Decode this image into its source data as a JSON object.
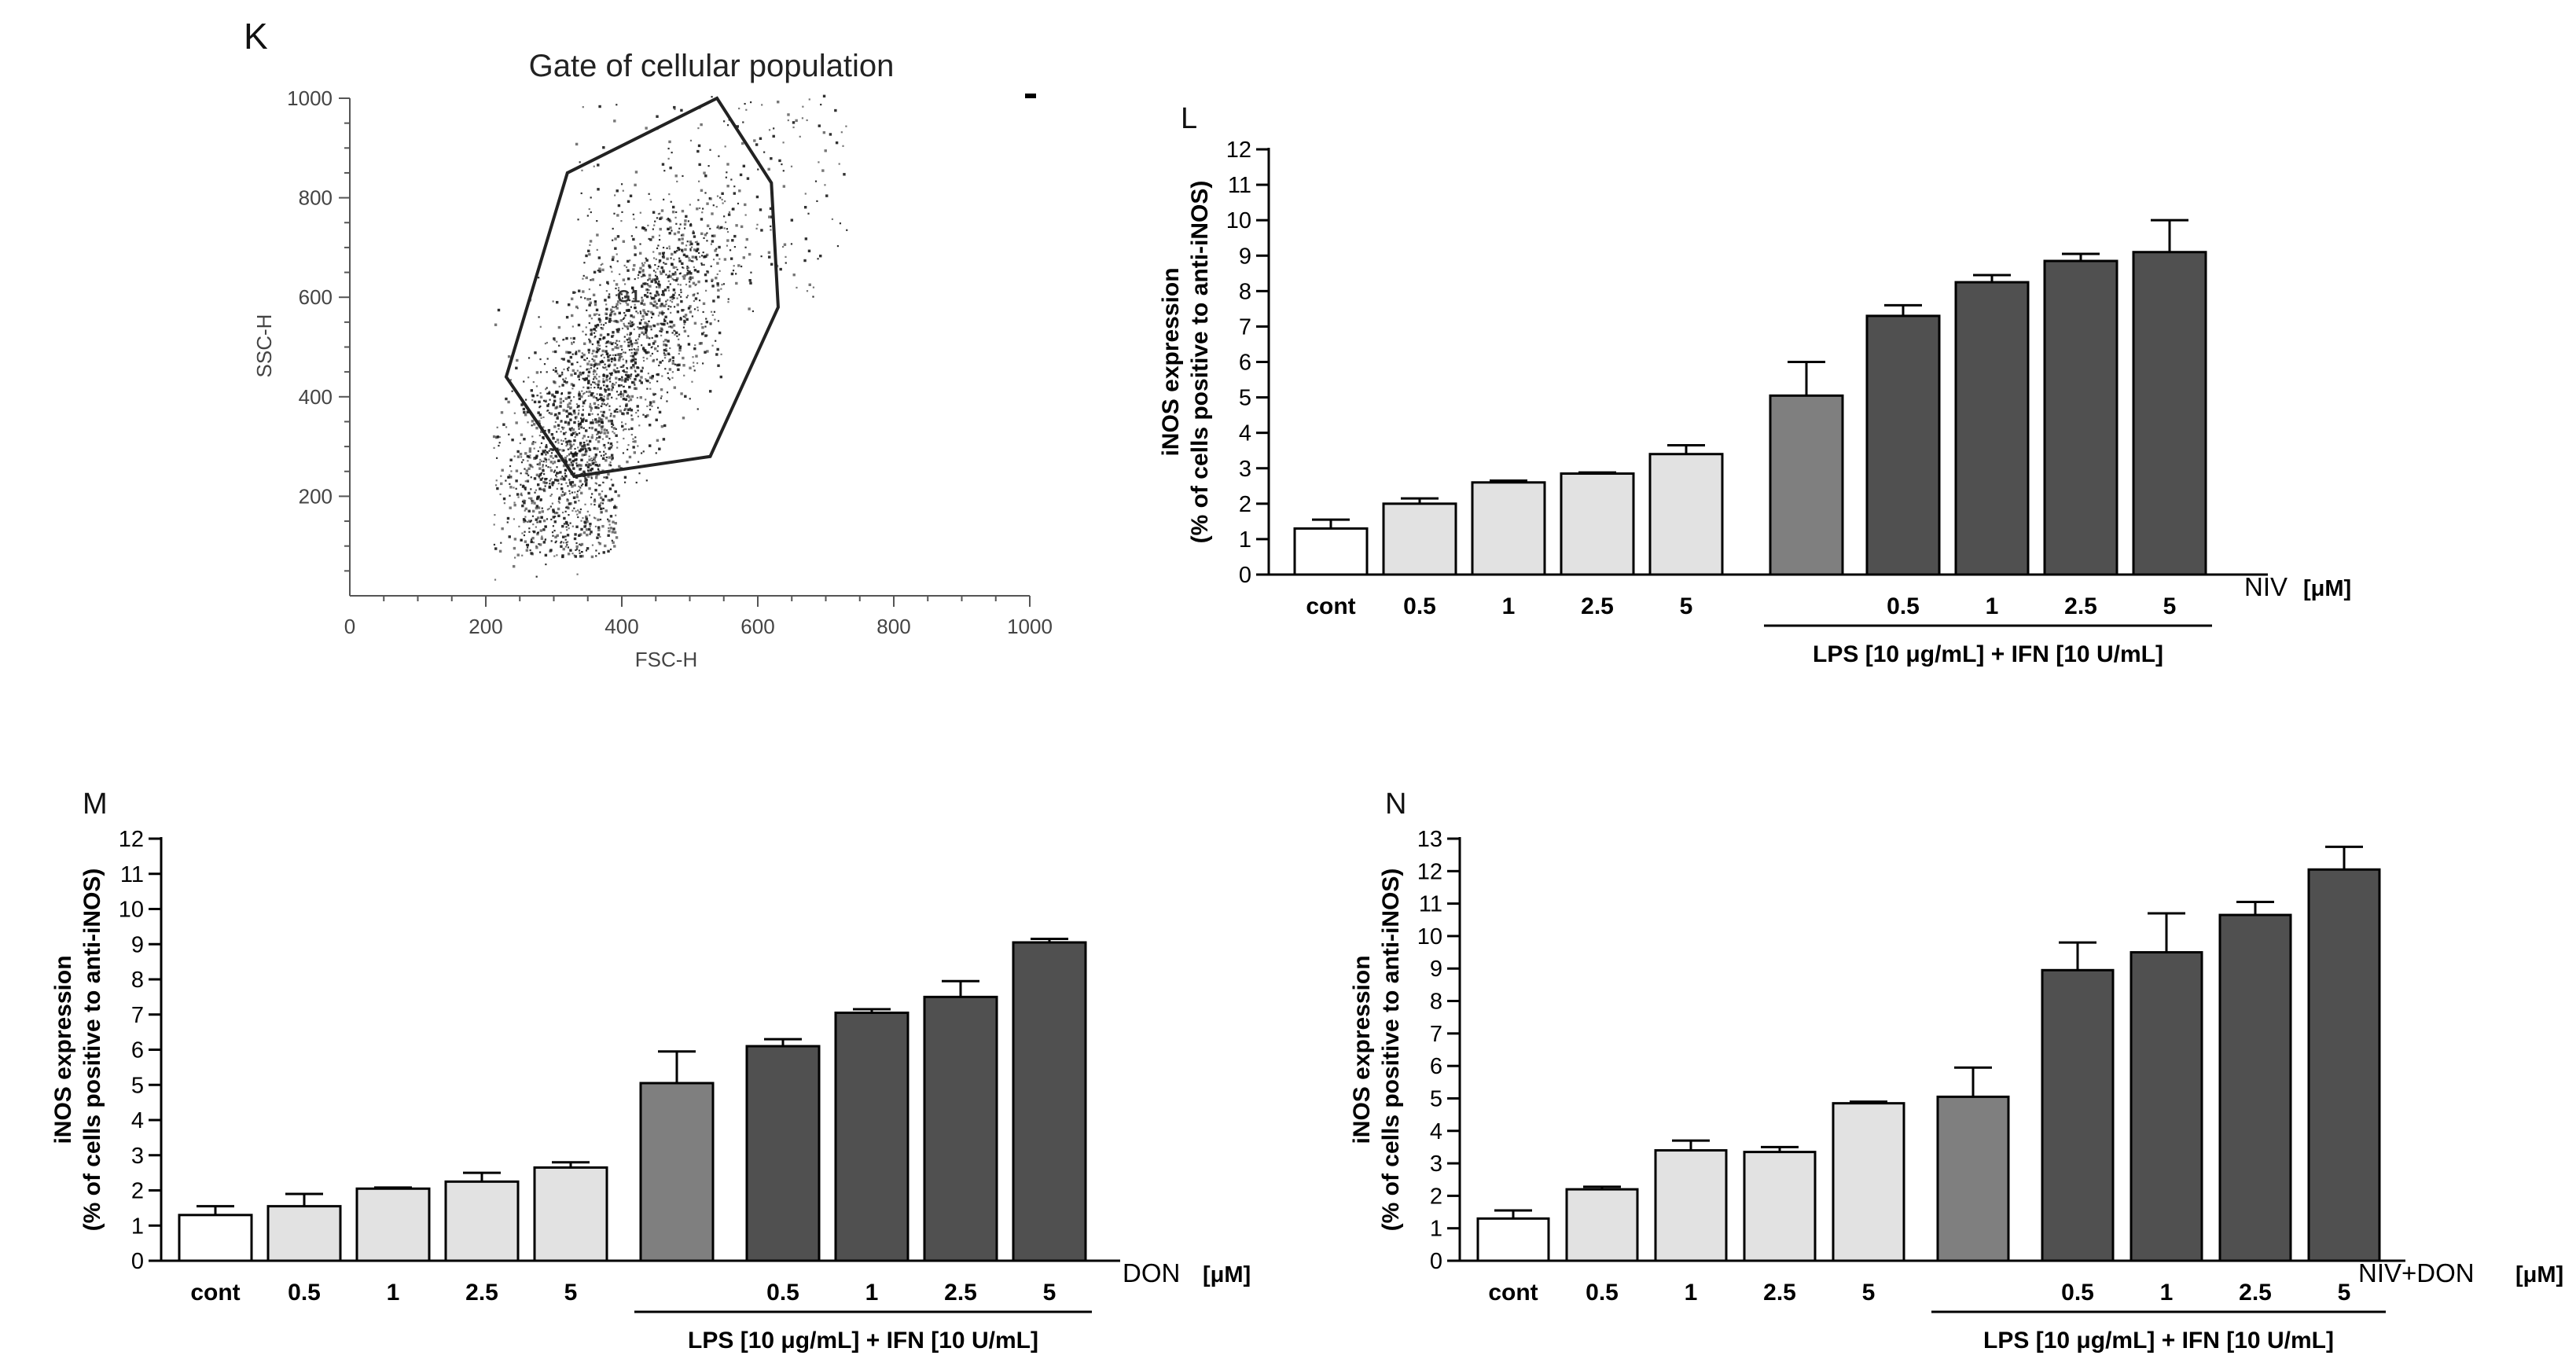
{
  "figure": {
    "panels": {
      "K": {
        "letter": "K",
        "title": "Gate of cellular population"
      },
      "L": {
        "letter": "L"
      },
      "M": {
        "letter": "M"
      },
      "N": {
        "letter": "N"
      }
    }
  },
  "chart_data": [
    {
      "id": "K",
      "type": "scatter",
      "title": "Gate of cellular population",
      "xlabel": "FSC-H",
      "ylabel": "SSC-H",
      "xlim": [
        0,
        1000
      ],
      "ylim": [
        0,
        1000
      ],
      "xticks": [
        0,
        200,
        400,
        600,
        800,
        1000
      ],
      "yticks": [
        200,
        400,
        600,
        800,
        1000
      ],
      "gate_label": "G1",
      "gate_polygon": [
        [
          230,
          440
        ],
        [
          320,
          850
        ],
        [
          540,
          1000
        ],
        [
          620,
          830
        ],
        [
          630,
          580
        ],
        [
          530,
          280
        ],
        [
          330,
          240
        ]
      ],
      "population": {
        "center": [
          390,
          470
        ],
        "spread": [
          85,
          170
        ],
        "events": 2600
      }
    },
    {
      "id": "L",
      "type": "bar",
      "ylabel": "iNOS expression",
      "ylabel2": "(% of cells positive to anti-iNOS)",
      "ylim": [
        0,
        12
      ],
      "yticks": [
        0,
        1,
        2,
        3,
        4,
        5,
        6,
        7,
        8,
        9,
        10,
        11,
        12
      ],
      "categories": [
        "cont",
        "0.5",
        "1",
        "2.5",
        "5",
        "",
        "0.5",
        "1",
        "2.5",
        "5"
      ],
      "values": [
        1.3,
        2.0,
        2.6,
        2.85,
        3.4,
        5.05,
        7.3,
        8.25,
        8.85,
        9.1
      ],
      "errors": [
        0.25,
        0.15,
        0.05,
        0.03,
        0.25,
        0.95,
        0.3,
        0.2,
        0.2,
        0.9
      ],
      "groups": [
        "white",
        "light",
        "light",
        "light",
        "light",
        "medium",
        "dark",
        "dark",
        "dark",
        "dark"
      ],
      "compound_label": "NIV",
      "unit_label": "[μM]",
      "bracket_label": "LPS [10 μg/mL] + IFN [10 U/mL]"
    },
    {
      "id": "M",
      "type": "bar",
      "ylabel": "iNOS expression",
      "ylabel2": "(% of cells positive to anti-iNOS)",
      "ylim": [
        0,
        12
      ],
      "yticks": [
        0,
        1,
        2,
        3,
        4,
        5,
        6,
        7,
        8,
        9,
        10,
        11,
        12
      ],
      "categories": [
        "cont",
        "0.5",
        "1",
        "2.5",
        "5",
        "",
        "0.5",
        "1",
        "2.5",
        "5"
      ],
      "values": [
        1.3,
        1.55,
        2.05,
        2.25,
        2.65,
        5.05,
        6.1,
        7.05,
        7.5,
        9.05
      ],
      "errors": [
        0.25,
        0.35,
        0.03,
        0.25,
        0.15,
        0.9,
        0.2,
        0.1,
        0.45,
        0.1
      ],
      "groups": [
        "white",
        "light",
        "light",
        "light",
        "light",
        "medium",
        "dark",
        "dark",
        "dark",
        "dark"
      ],
      "compound_label": "DON",
      "unit_label": "[μM]",
      "bracket_label": "LPS [10 μg/mL] + IFN [10 U/mL]"
    },
    {
      "id": "N",
      "type": "bar",
      "ylabel": "iNOS expression",
      "ylabel2": "(% of cells positive to anti-iNOS)",
      "ylim": [
        0,
        13
      ],
      "yticks": [
        0,
        1,
        2,
        3,
        4,
        5,
        6,
        7,
        8,
        9,
        10,
        11,
        12,
        13
      ],
      "categories": [
        "cont",
        "0.5",
        "1",
        "2.5",
        "5",
        "",
        "0.5",
        "1",
        "2.5",
        "5"
      ],
      "values": [
        1.3,
        2.2,
        3.4,
        3.35,
        4.85,
        5.05,
        8.95,
        9.5,
        10.65,
        12.05
      ],
      "errors": [
        0.25,
        0.08,
        0.3,
        0.15,
        0.05,
        0.9,
        0.85,
        1.2,
        0.4,
        0.7
      ],
      "groups": [
        "white",
        "light",
        "light",
        "light",
        "light",
        "medium",
        "dark",
        "dark",
        "dark",
        "dark"
      ],
      "compound_label": "NIV+DON",
      "unit_label": "[μM]",
      "bracket_label": "LPS [10 μg/mL] + IFN [10 U/mL]"
    }
  ],
  "colors": {
    "white": "#ffffff",
    "light": "#e2e2e2",
    "medium": "#7f7f7f",
    "dark": "#505050",
    "ink": "#000000",
    "dot": "#1a1a1a",
    "flow_axis": "#555555"
  }
}
